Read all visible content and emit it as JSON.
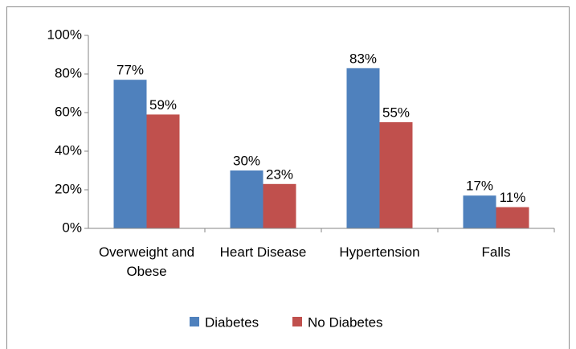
{
  "chart_data": {
    "type": "bar",
    "categories": [
      "Overweight and Obese",
      "Heart Disease",
      "Hypertension",
      "Falls"
    ],
    "series": [
      {
        "name": "Diabetes",
        "color": "#4f81bd",
        "values": [
          77,
          30,
          83,
          17
        ],
        "value_labels": [
          "77%",
          "30%",
          "83%",
          "17%"
        ]
      },
      {
        "name": "No Diabetes",
        "color": "#c0504d",
        "values": [
          59,
          23,
          55,
          11
        ],
        "value_labels": [
          "59%",
          "23%",
          "55%",
          "11%"
        ]
      }
    ],
    "ylim": [
      0,
      100
    ],
    "yticks": [
      {
        "value": 0,
        "label": "0%"
      },
      {
        "value": 20,
        "label": "20%"
      },
      {
        "value": 40,
        "label": "40%"
      },
      {
        "value": 60,
        "label": "60%"
      },
      {
        "value": 80,
        "label": "80%"
      },
      {
        "value": 100,
        "label": "100%"
      }
    ],
    "grid": false,
    "legend": "bottom"
  }
}
